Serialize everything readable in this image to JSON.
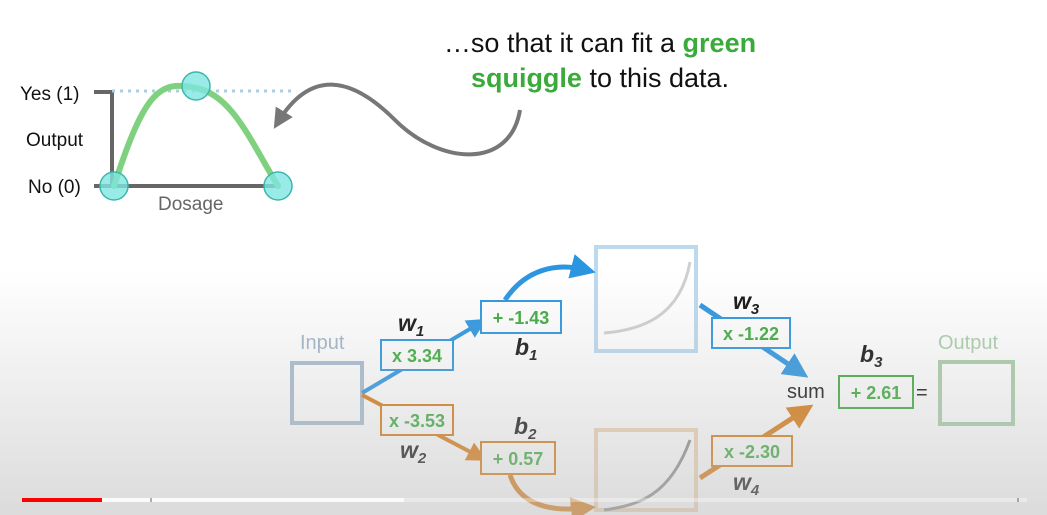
{
  "caption": {
    "line1_prefix": "…so that it can fit a",
    "line1_highlight": "green",
    "line2_highlight": "squiggle",
    "line2_suffix": "to this data."
  },
  "small_plot": {
    "yes_label": "Yes (1)",
    "output_label": "Output",
    "no_label": "No (0)",
    "x_label": "Dosage",
    "points": [
      {
        "dosage": 0.0,
        "output": 0
      },
      {
        "dosage": 0.5,
        "output": 1
      },
      {
        "dosage": 1.0,
        "output": 0
      }
    ]
  },
  "network": {
    "input_label": "Input",
    "output_label": "Output",
    "sum_label": "sum",
    "equals": "=",
    "w1": {
      "name": "w",
      "sub": "1",
      "value": "x 3.34"
    },
    "w2": {
      "name": "w",
      "sub": "2",
      "value": "x -3.53"
    },
    "b1": {
      "name": "b",
      "sub": "1",
      "value": "+ -1.43"
    },
    "b2": {
      "name": "b",
      "sub": "2",
      "value": "+ 0.57"
    },
    "w3": {
      "name": "w",
      "sub": "3",
      "value": "x -1.22"
    },
    "w4": {
      "name": "w",
      "sub": "4",
      "value": "x -2.30"
    },
    "b3": {
      "name": "b",
      "sub": "3",
      "value": "+ 2.61"
    }
  },
  "colors": {
    "blue": "#2b95e0",
    "orange": "#d9790f",
    "green": "#3aaa3a",
    "curve_green": "#7fd17f",
    "dot_fill": "#7ee6e0",
    "axis_gray": "#666666"
  },
  "player": {
    "played_fraction": 0.08,
    "buffered_fraction": 0.38
  }
}
